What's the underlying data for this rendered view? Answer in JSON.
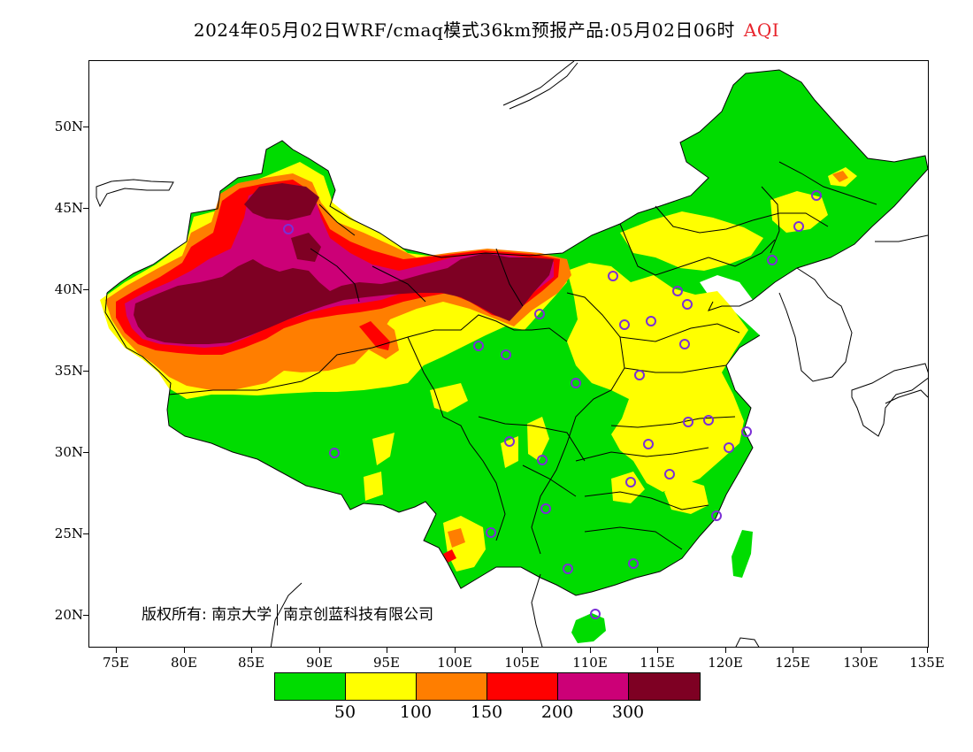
{
  "title": {
    "main": "2024年05月02日WRF/cmaq模式36km预报产品:05月02日06时",
    "variable": "AQI",
    "variable_color": "#e8242c"
  },
  "axes": {
    "lat_labels": [
      "50N",
      "45N",
      "40N",
      "35N",
      "30N",
      "25N",
      "20N"
    ],
    "lon_labels": [
      "75E",
      "80E",
      "85E",
      "90E",
      "95E",
      "100E",
      "105E",
      "110E",
      "115E",
      "120E",
      "125E",
      "130E",
      "135E"
    ]
  },
  "copyright": {
    "prefix": "版权所有:",
    "org1": "南京大学",
    "org2": "南京创蓝科技有限公司"
  },
  "legend": {
    "colors": [
      "#00dc00",
      "#ffff00",
      "#ff7e00",
      "#ff0000",
      "#cc0077",
      "#7e0023"
    ],
    "labels": [
      "50",
      "100",
      "150",
      "200",
      "300"
    ]
  },
  "station_marker_color": "#7b2fd6"
}
